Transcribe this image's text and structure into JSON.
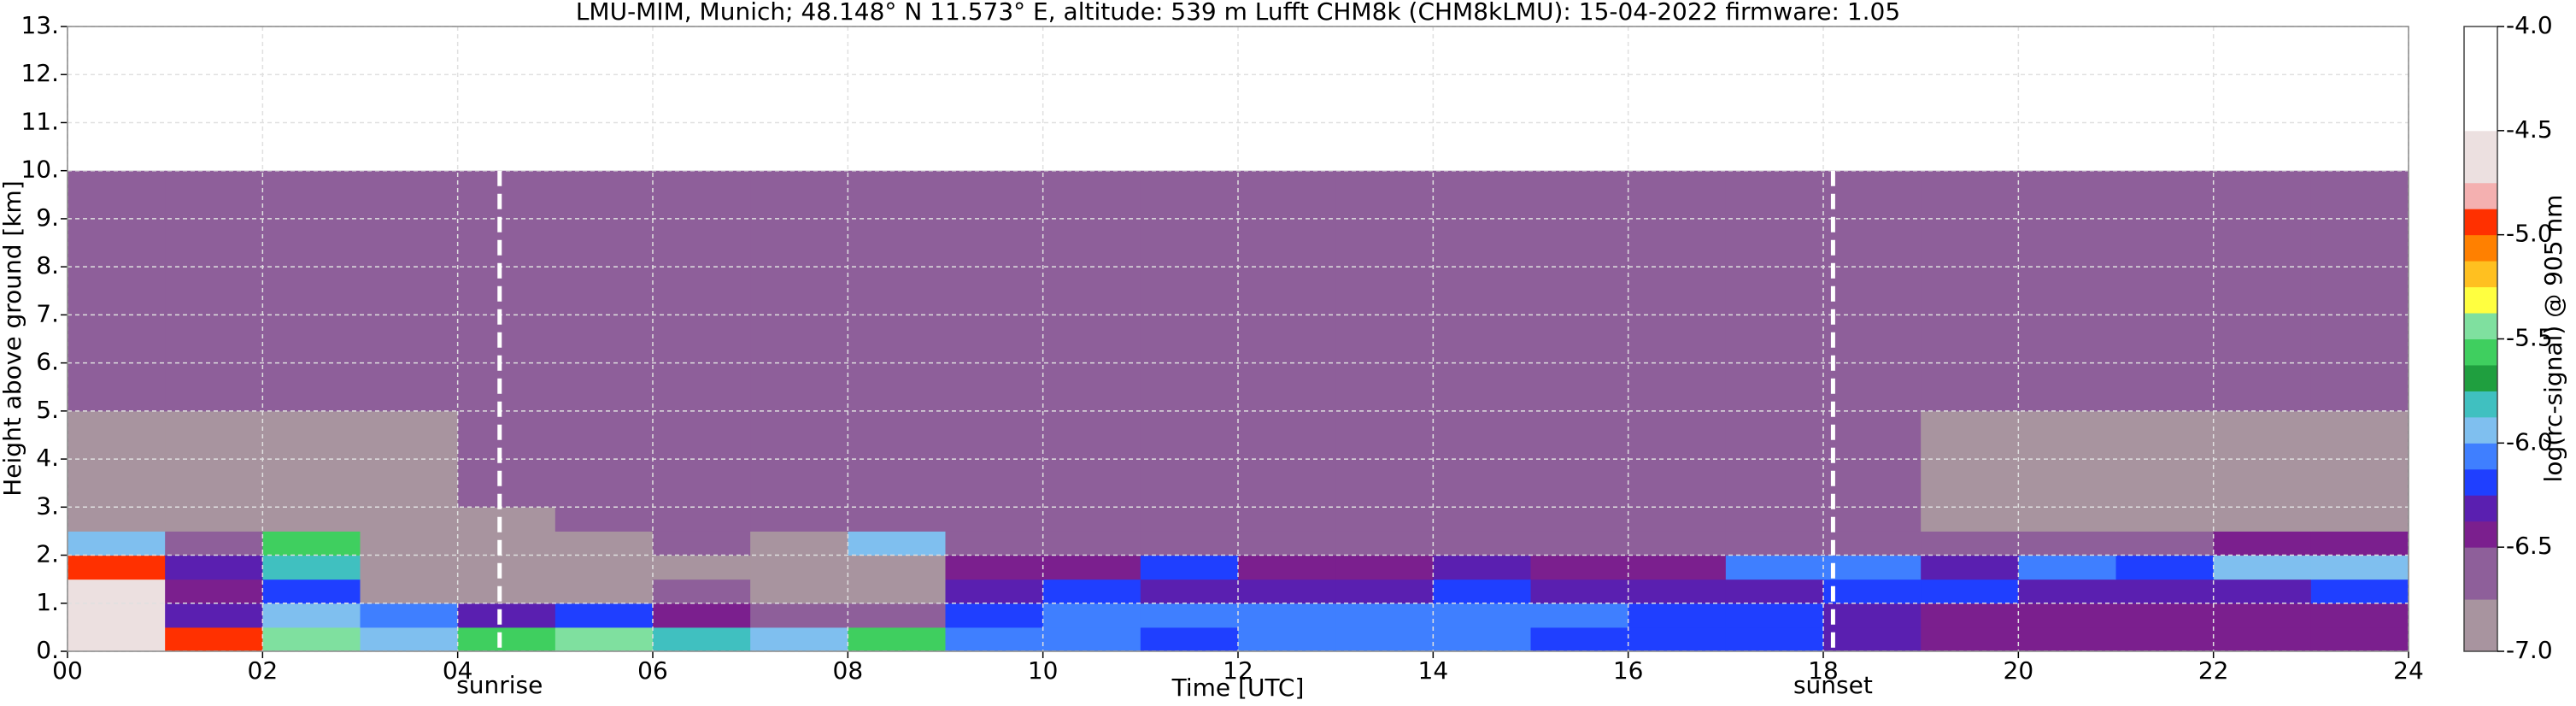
{
  "chart_data": {
    "type": "heatmap",
    "title": "LMU-MIM, Munich; 48.148° N 11.573° E, altitude: 539 m    Lufft CHM8k (CHM8kLMU): 15-04-2022    firmware: 1.05",
    "x_label": "Time [UTC]",
    "y_label": "Height above ground [km]",
    "xlim": [
      0,
      24
    ],
    "ylim": [
      0,
      13
    ],
    "xticks": [
      {
        "value": 0,
        "label": "00"
      },
      {
        "value": 2,
        "label": "02"
      },
      {
        "value": 4,
        "label": "04"
      },
      {
        "value": 6,
        "label": "06"
      },
      {
        "value": 8,
        "label": "08"
      },
      {
        "value": 10,
        "label": "10"
      },
      {
        "value": 12,
        "label": "12"
      },
      {
        "value": 14,
        "label": "14"
      },
      {
        "value": 16,
        "label": "16"
      },
      {
        "value": 18,
        "label": "18"
      },
      {
        "value": 20,
        "label": "20"
      },
      {
        "value": 22,
        "label": "22"
      },
      {
        "value": 24,
        "label": "24"
      }
    ],
    "yticks": [
      {
        "value": 0,
        "label": "0."
      },
      {
        "value": 1,
        "label": "1."
      },
      {
        "value": 2,
        "label": "2."
      },
      {
        "value": 3,
        "label": "3."
      },
      {
        "value": 4,
        "label": "4."
      },
      {
        "value": 5,
        "label": "5."
      },
      {
        "value": 6,
        "label": "6."
      },
      {
        "value": 7,
        "label": "7."
      },
      {
        "value": 8,
        "label": "8."
      },
      {
        "value": 9,
        "label": "9."
      },
      {
        "value": 10,
        "label": "10."
      },
      {
        "value": 11,
        "label": "11."
      },
      {
        "value": 12,
        "label": "12."
      },
      {
        "value": 13,
        "label": "13."
      }
    ],
    "grid": true,
    "x_edges": [
      0,
      1,
      2,
      3,
      4,
      5,
      6,
      7,
      8,
      9,
      10,
      11,
      12,
      13,
      14,
      15,
      16,
      17,
      18,
      19,
      20,
      21,
      22,
      23,
      24
    ],
    "y_edges": [
      0,
      0.5,
      1,
      1.5,
      2,
      2.5,
      3,
      5,
      10
    ],
    "z": [
      [
        -4.6,
        -5.0,
        -5.4,
        -6.0,
        -5.6,
        -5.4,
        -5.8,
        -5.9,
        -5.6,
        -6.1,
        -6.1,
        -6.15,
        -6.1,
        -6.1,
        -6.1,
        -6.15,
        -6.2,
        -6.2,
        -6.3,
        -6.4,
        -6.45,
        -6.45,
        -6.45,
        -6.4
      ],
      [
        -4.6,
        -6.3,
        -6.0,
        -6.1,
        -6.3,
        -6.2,
        -6.5,
        -6.7,
        -6.7,
        -6.2,
        -6.1,
        -6.1,
        -6.1,
        -6.1,
        -6.1,
        -6.1,
        -6.15,
        -6.2,
        -6.3,
        -6.45,
        -6.5,
        -6.5,
        -6.5,
        -6.45
      ],
      [
        -4.7,
        -6.4,
        -6.2,
        -6.8,
        -6.8,
        -6.8,
        -6.6,
        -6.8,
        -6.8,
        -6.3,
        -6.25,
        -6.3,
        -6.3,
        -6.3,
        -6.25,
        -6.3,
        -6.3,
        -6.3,
        -6.2,
        -6.2,
        -6.3,
        -6.3,
        -6.3,
        -6.25
      ],
      [
        -5.0,
        -6.3,
        -5.8,
        -6.9,
        -6.9,
        -6.9,
        -6.8,
        -6.8,
        -6.8,
        -6.5,
        -6.5,
        -6.2,
        -6.4,
        -6.4,
        -6.3,
        -6.5,
        -6.4,
        -6.1,
        -6.1,
        -6.3,
        -6.1,
        -6.2,
        -6.0,
        -5.9
      ],
      [
        -6.0,
        -6.7,
        -5.6,
        -6.9,
        -6.9,
        -6.8,
        -6.6,
        -6.8,
        -6.0,
        -6.7,
        -6.7,
        -6.7,
        -6.7,
        -6.7,
        -6.7,
        -6.7,
        -6.7,
        -6.6,
        -6.6,
        -6.6,
        -6.7,
        -6.6,
        -6.5,
        -6.5
      ],
      [
        -6.9,
        -6.9,
        -6.9,
        -6.85,
        -6.8,
        -6.75,
        -6.7,
        -6.7,
        -6.7,
        -6.7,
        -6.7,
        -6.7,
        -6.7,
        -6.7,
        -6.7,
        -6.7,
        -6.7,
        -6.7,
        -6.75,
        -6.8,
        -6.8,
        -6.8,
        -6.8,
        -6.8
      ],
      [
        -6.8,
        -6.8,
        -6.8,
        -6.8,
        -6.75,
        -6.7,
        -6.7,
        -6.7,
        -6.7,
        -6.7,
        -6.7,
        -6.7,
        -6.7,
        -6.7,
        -6.7,
        -6.7,
        -6.7,
        -6.7,
        -6.75,
        -6.8,
        -6.8,
        -6.8,
        -6.8,
        -6.8
      ],
      [
        -6.7,
        -6.7,
        -6.7,
        -6.7,
        -6.7,
        -6.65,
        -6.6,
        -6.6,
        -6.6,
        -6.6,
        -6.6,
        -6.6,
        -6.6,
        -6.6,
        -6.6,
        -6.6,
        -6.6,
        -6.6,
        -6.65,
        -6.7,
        -6.7,
        -6.7,
        -6.7,
        -6.7
      ]
    ],
    "events": [
      {
        "x": 4.43,
        "label": "sunrise"
      },
      {
        "x": 18.1,
        "label": "sunset"
      }
    ],
    "colorbar": {
      "label": "log(rc-signal) @ 905 nm",
      "bounds": [
        -7,
        -6.75,
        -6.5,
        -6.375,
        -6.25,
        -6.125,
        -6,
        -5.875,
        -5.75,
        -5.625,
        -5.5,
        -5.375,
        -5.25,
        -5.125,
        -5,
        -4.875,
        -4.75,
        -4.5,
        -4.0
      ],
      "colors": [
        "#a8949f",
        "#8e5f9a",
        "#7b1f8e",
        "#5a1fb0",
        "#1f3fff",
        "#3f7fff",
        "#7fbfef",
        "#40c0c0",
        "#1f9f3f",
        "#3fcf5f",
        "#7fe09f",
        "#ffff40",
        "#ffc020",
        "#ff8000",
        "#ff3000",
        "#f4b0b0",
        "#ece0e0",
        "#ffffff"
      ],
      "ticks": [
        {
          "value": -7.0,
          "label": "-7.0"
        },
        {
          "value": -6.5,
          "label": "-6.5"
        },
        {
          "value": -6.0,
          "label": "-6.0"
        },
        {
          "value": -5.5,
          "label": "-5.5"
        },
        {
          "value": -5.0,
          "label": "-5.0"
        },
        {
          "value": -4.5,
          "label": "-4.5"
        },
        {
          "value": -4.0,
          "label": "-4.0"
        }
      ]
    }
  }
}
